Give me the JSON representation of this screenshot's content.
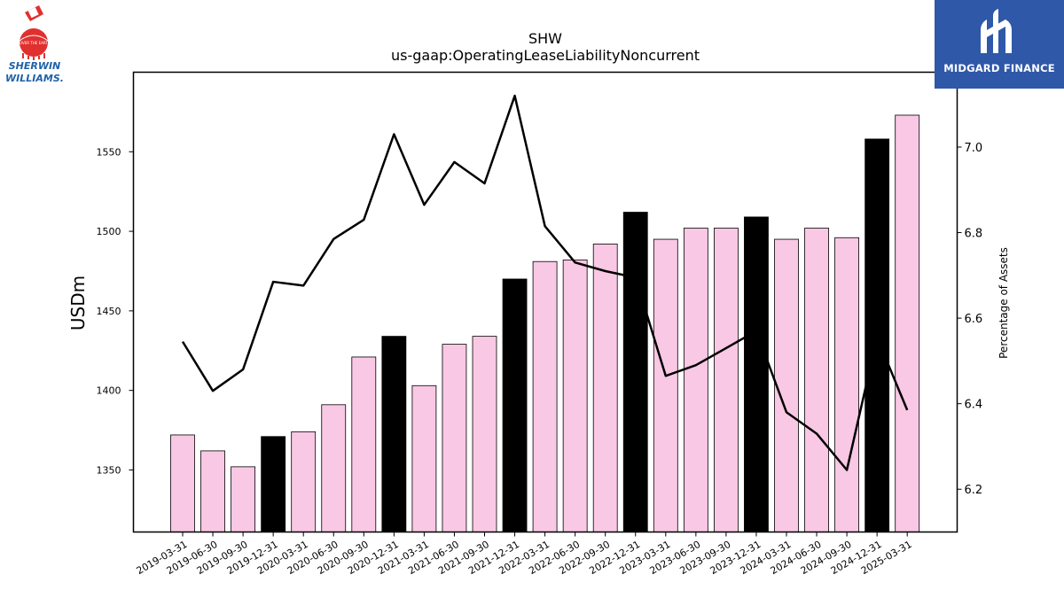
{
  "logos": {
    "left": {
      "line1": "SHERWIN",
      "line2": "WILLIAMS.",
      "can_text": "COVER THE EARTH"
    },
    "right": {
      "text": "MIDGARD FINANCE"
    }
  },
  "colors": {
    "bar_default": "#f9c8e4",
    "bar_highlight": "#000000",
    "line": "#000000",
    "brand_blue": "#2f58a8",
    "sherwin_blue": "#1f62a8",
    "sherwin_red": "#e0312f"
  },
  "chart_data": {
    "type": "bar",
    "title": "SHW",
    "subtitle": "us-gaap:OperatingLeaseLiabilityNoncurrent",
    "ylabel": "USDm",
    "y2label": "Percentage of Assets",
    "ylim": [
      1311,
      1600
    ],
    "y2lim": [
      6.1,
      7.175
    ],
    "yticks": [
      1350,
      1400,
      1450,
      1500,
      1550
    ],
    "y2ticks": [
      "6.2",
      "6.4",
      "6.6",
      "6.8",
      "7.0"
    ],
    "grid": false,
    "categories": [
      "2019-03-31",
      "2019-06-30",
      "2019-09-30",
      "2019-12-31",
      "2020-03-31",
      "2020-06-30",
      "2020-09-30",
      "2020-12-31",
      "2021-03-31",
      "2021-06-30",
      "2021-09-30",
      "2021-12-31",
      "2022-03-31",
      "2022-06-30",
      "2022-09-30",
      "2022-12-31",
      "2023-03-31",
      "2023-06-30",
      "2023-09-30",
      "2023-12-31",
      "2024-03-31",
      "2024-06-30",
      "2024-09-30",
      "2024-12-31",
      "2025-03-31"
    ],
    "series": [
      {
        "type": "bar",
        "values": [
          1372,
          1362,
          1352,
          1371,
          1374,
          1391,
          1421,
          1434,
          1403,
          1429,
          1434,
          1470,
          1481,
          1482,
          1492,
          1512,
          1495,
          1502,
          1502,
          1509,
          1495,
          1502,
          1496,
          1558,
          1573
        ],
        "highlighted": [
          false,
          false,
          false,
          true,
          false,
          false,
          false,
          true,
          false,
          false,
          false,
          true,
          false,
          false,
          false,
          true,
          false,
          false,
          false,
          true,
          false,
          false,
          false,
          true,
          false
        ]
      },
      {
        "type": "line",
        "axis": "right",
        "values": [
          6.545,
          6.43,
          6.48,
          6.685,
          6.676,
          6.785,
          6.83,
          7.03,
          6.865,
          6.965,
          6.915,
          7.12,
          6.815,
          6.73,
          6.71,
          6.695,
          6.465,
          6.49,
          6.53,
          6.57,
          6.38,
          6.33,
          6.245,
          6.555,
          6.385
        ]
      }
    ]
  }
}
